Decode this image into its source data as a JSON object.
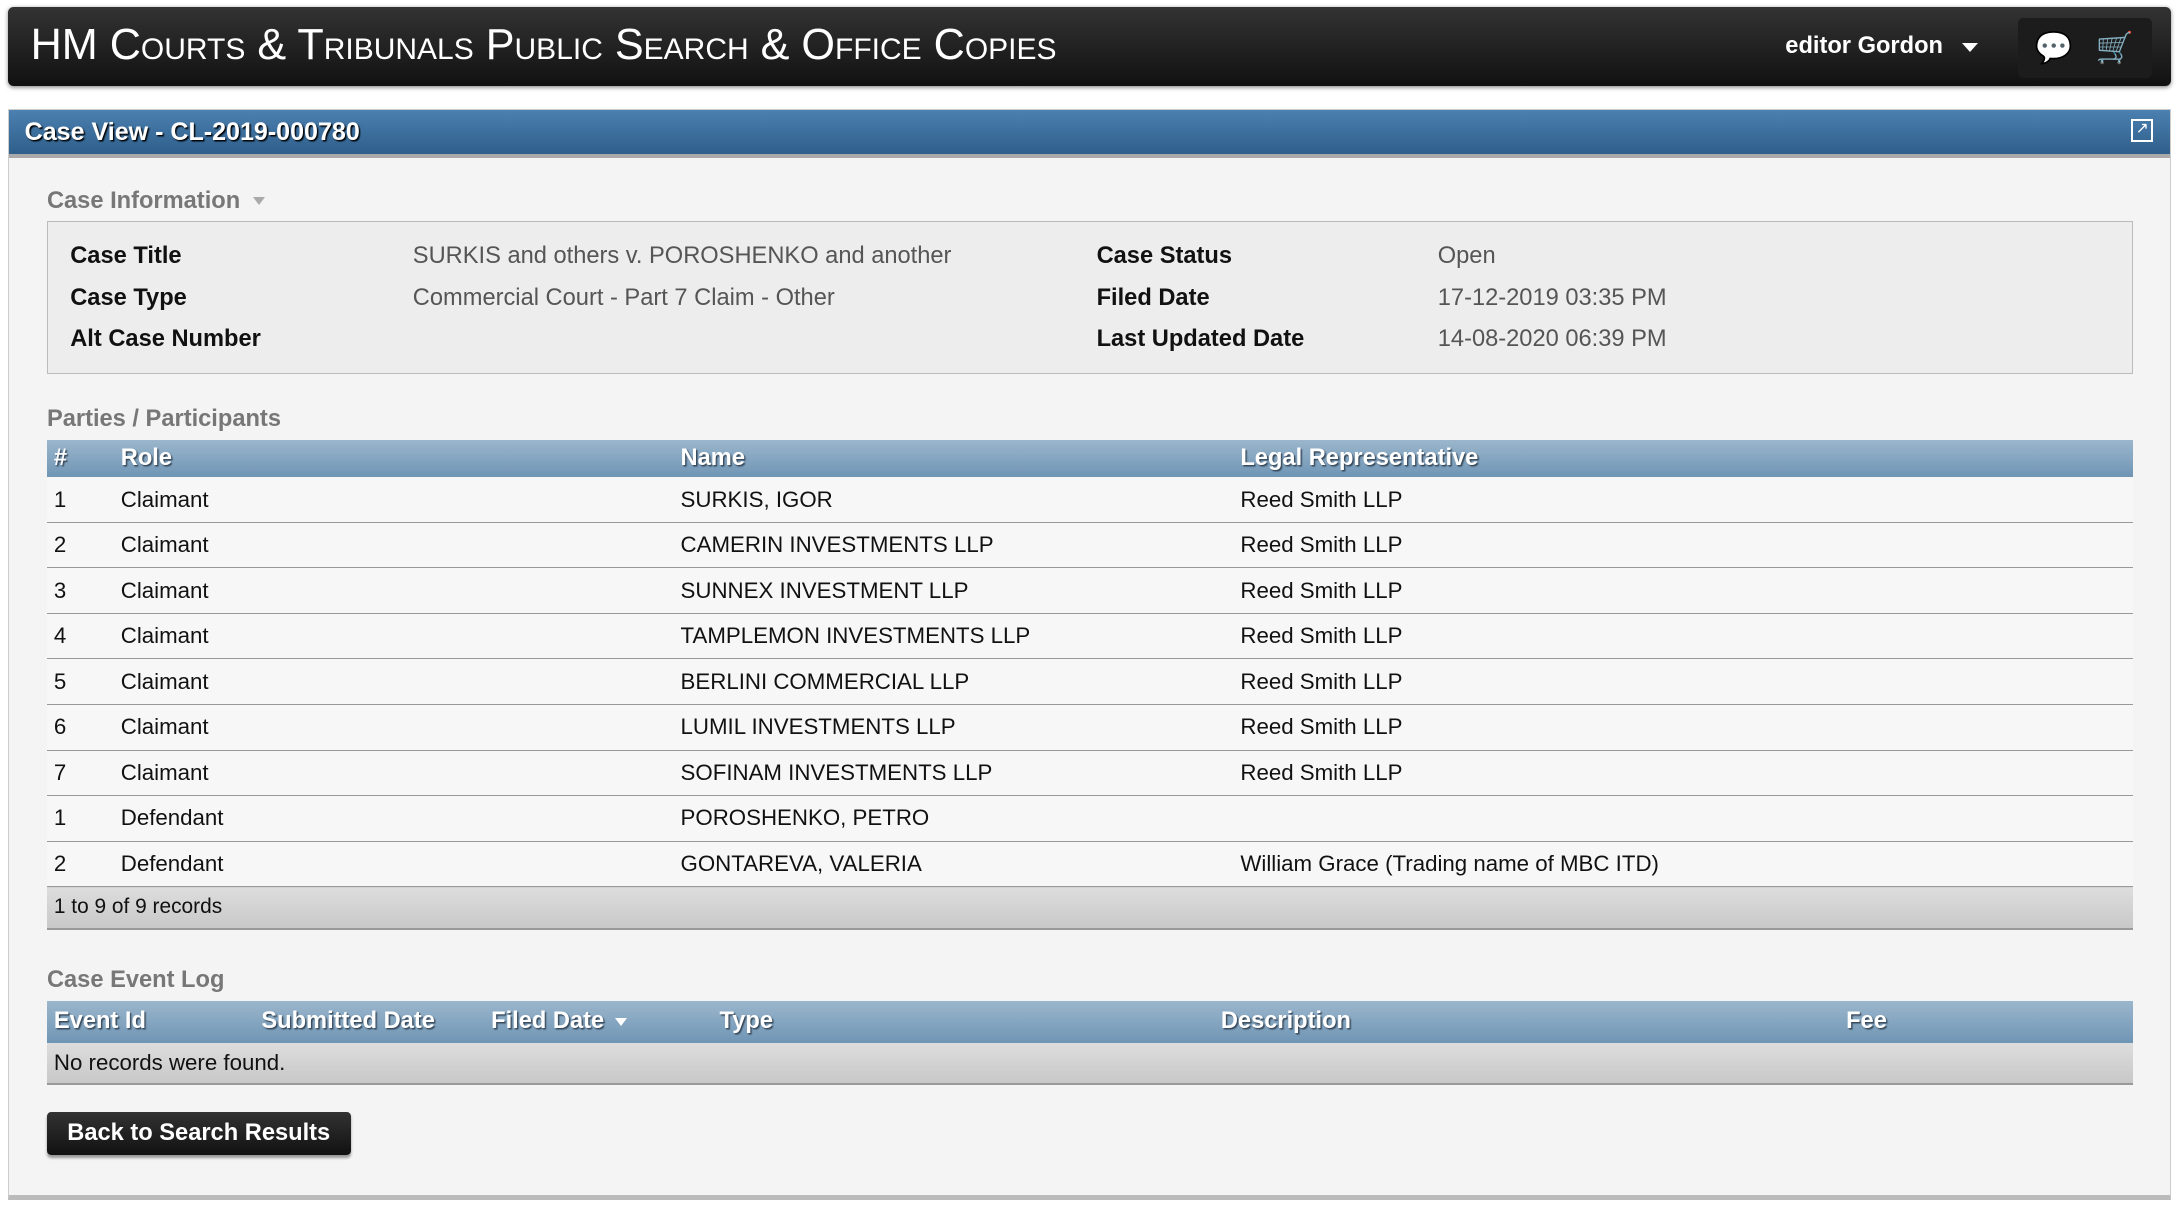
{
  "header": {
    "title": "HM Courts & Tribunals Public Search & Office Copies",
    "user": "editor Gordon",
    "icons": [
      "chat-icon",
      "cart-icon"
    ]
  },
  "panel": {
    "title": "Case View - CL-2019-000780"
  },
  "case_info": {
    "heading": "Case Information",
    "case_title_label": "Case Title",
    "case_title": "SURKIS and others v. POROSHENKO and another",
    "case_type_label": "Case Type",
    "case_type": "Commercial Court - Part 7 Claim - Other",
    "alt_case_number_label": "Alt Case Number",
    "alt_case_number": "",
    "case_status_label": "Case Status",
    "case_status": "Open",
    "filed_date_label": "Filed Date",
    "filed_date": "17-12-2019 03:35 PM",
    "last_updated_label": "Last Updated Date",
    "last_updated": "14-08-2020 06:39 PM"
  },
  "parties": {
    "heading": "Parties / Participants",
    "columns": [
      "#",
      "Role",
      "Name",
      "Legal Representative"
    ],
    "rows": [
      [
        "1",
        "Claimant",
        "SURKIS, IGOR",
        "Reed Smith LLP"
      ],
      [
        "2",
        "Claimant",
        "CAMERIN INVESTMENTS LLP",
        "Reed Smith LLP"
      ],
      [
        "3",
        "Claimant",
        "SUNNEX INVESTMENT LLP",
        "Reed Smith LLP"
      ],
      [
        "4",
        "Claimant",
        "TAMPLEMON INVESTMENTS LLP",
        "Reed Smith LLP"
      ],
      [
        "5",
        "Claimant",
        "BERLINI COMMERCIAL LLP",
        "Reed Smith LLP"
      ],
      [
        "6",
        "Claimant",
        "LUMIL INVESTMENTS LLP",
        "Reed Smith LLP"
      ],
      [
        "7",
        "Claimant",
        "SOFINAM INVESTMENTS LLP",
        "Reed Smith LLP"
      ],
      [
        "1",
        "Defendant",
        "POROSHENKO, PETRO",
        ""
      ],
      [
        "2",
        "Defendant",
        "GONTAREVA, VALERIA",
        "William Grace (Trading name of MBC ITD)"
      ]
    ],
    "footer": "1 to 9 of 9 records"
  },
  "event_log": {
    "heading": "Case Event Log",
    "columns": [
      "Event Id",
      "Submitted Date",
      "Filed Date",
      "Type",
      "Description",
      "Fee"
    ],
    "empty": "No records were found."
  },
  "back_button": "Back to Search Results"
}
